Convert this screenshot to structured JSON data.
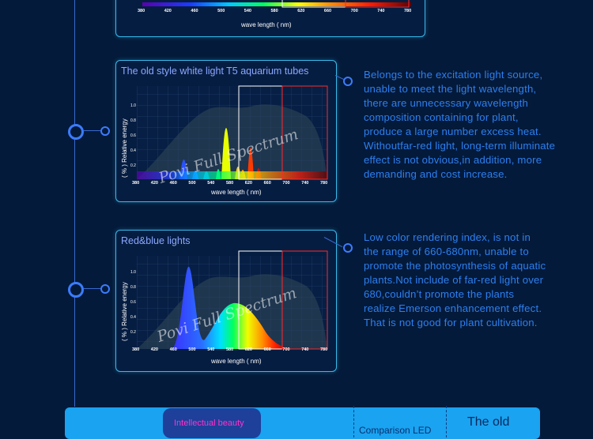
{
  "top_chart": {
    "ticks": [
      "380",
      "420",
      "460",
      "500",
      "540",
      "580",
      "620",
      "660",
      "700",
      "740",
      "780"
    ],
    "xlabel": "wave length ( nm)"
  },
  "section_t5": {
    "title": "The old style white light T5 aquarium tubes",
    "ylabel": "( % ) Relative energy",
    "yticks": [
      "1.0",
      "0.8",
      "0.6",
      "0.4",
      "0.2"
    ],
    "ticks": [
      "380",
      "420",
      "460",
      "500",
      "540",
      "580",
      "620",
      "660",
      "700",
      "740",
      "780"
    ],
    "xlabel": "wave length ( nm)",
    "watermark": "Povi Full Spectrum",
    "description": [
      "Belongs to the excitation light source,",
      "unable to meet the light wavelength,",
      "there are unnecessary wavelength",
      "composition containing for plant,",
      "produce a large number excess heat.",
      "Withoutfar-red light, long-term illuminate",
      "effect is not obvious,in addition, more",
      "demanding and cost increase."
    ]
  },
  "section_rb": {
    "title": "Red&blue lights",
    "ylabel": "( % ) Relative energy",
    "yticks": [
      "1.0",
      "0.8",
      "0.6",
      "0.4",
      "0.2"
    ],
    "ticks": [
      "380",
      "420",
      "460",
      "500",
      "540",
      "580",
      "620",
      "660",
      "700",
      "740",
      "780"
    ],
    "xlabel": "wave length ( nm)",
    "watermark": "Povi Full Spectrum",
    "description": [
      "Low color rendering index, is not in",
      "the range of 660-680nm, unable to",
      "promote the photosynthesis of aquatic",
      "plants.Not include of far-red light over",
      "680,couldn’t promote the plants",
      "realize Emerson enhancement effect.",
      "That is not good for plant cultivation."
    ]
  },
  "bottom": {
    "left_label": "Intellectual beauty",
    "right_label": "The old",
    "mid_label": "Comparison LED"
  },
  "colors": {
    "accent": "#39b9e8",
    "text_blue": "#2d7ff0",
    "bg": "#041a3a"
  }
}
